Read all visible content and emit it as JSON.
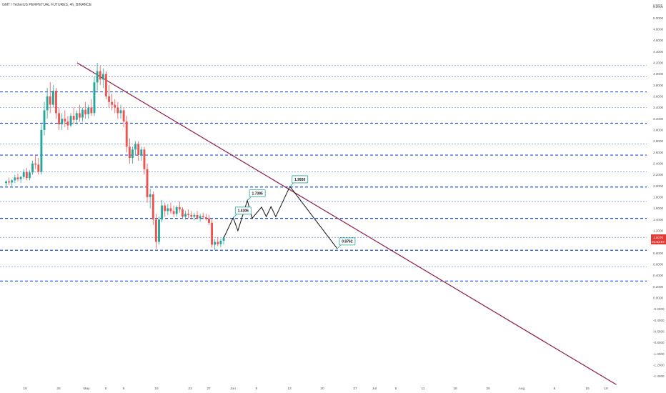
{
  "header": {
    "symbol_title": "GMT / TetherUS PERPETUAL FUTURES, 4h, BINANCE",
    "currency": "USDT"
  },
  "price_tag": {
    "price": "1.0070",
    "countdown": "01:53:57",
    "color": "#e53935"
  },
  "colors": {
    "up": "#26a69a",
    "down": "#ef5350",
    "trendline": "#8b1a4a",
    "level_solid": "#1f4fd6",
    "level_dotted": "#4a72e0",
    "projection": "#111111",
    "annotation_border": "#26a69a"
  },
  "chart_data": {
    "type": "candlestick",
    "y_axis": {
      "ticks": [
        "5.2000",
        "5.0000",
        "4.8000",
        "4.6000",
        "4.4000",
        "4.2000",
        "4.0000",
        "3.8000",
        "3.6000",
        "3.4000",
        "3.2000",
        "3.0000",
        "2.8000",
        "2.6000",
        "2.4000",
        "2.2000",
        "2.0000",
        "1.8000",
        "1.6000",
        "1.4000",
        "1.2000",
        "1.0000",
        "0.8000",
        "0.6000",
        "0.4000",
        "0.2000",
        "0.0000",
        "-0.2000",
        "-0.4000",
        "-0.6000",
        "-0.8000",
        "-1.0000",
        "-1.2000",
        "-1.4000"
      ],
      "range": [
        -1.5,
        5.4
      ]
    },
    "x_axis": {
      "ticks": [
        "18",
        "25",
        "May",
        "5",
        "9",
        "16",
        "23",
        "27",
        "Jun",
        "6",
        "13",
        "20",
        "27",
        "Jul",
        "5",
        "11",
        "18",
        "25",
        "Aug",
        "8",
        "15",
        "19"
      ]
    },
    "horizontal_levels": [
      {
        "price": 4.15,
        "style": "dotted"
      },
      {
        "price": 3.95,
        "style": "dotted"
      },
      {
        "price": 3.68,
        "style": "dashed"
      },
      {
        "price": 3.4,
        "style": "dotted"
      },
      {
        "price": 3.12,
        "style": "dashed"
      },
      {
        "price": 2.75,
        "style": "dotted"
      },
      {
        "price": 2.55,
        "style": "dashed"
      },
      {
        "price": 2.25,
        "style": "dotted"
      },
      {
        "price": 1.98,
        "style": "dashed"
      },
      {
        "price": 1.72,
        "style": "dotted"
      },
      {
        "price": 1.42,
        "style": "dashed"
      },
      {
        "price": 1.08,
        "style": "dotted"
      },
      {
        "price": 0.85,
        "style": "dashed"
      },
      {
        "price": 0.55,
        "style": "dotted"
      },
      {
        "price": 0.3,
        "style": "dashed"
      }
    ],
    "trendline": {
      "from": {
        "x": "Apr 29",
        "y": 4.2
      },
      "to": {
        "x": "Aug 21",
        "y": -1.55
      }
    },
    "projection_path": [
      {
        "x": "May 30",
        "y": 1.07
      },
      {
        "x": "Jun 1",
        "y": 1.43
      },
      {
        "x": "Jun 2",
        "y": 1.2
      },
      {
        "x": "Jun 4",
        "y": 1.74
      },
      {
        "x": "Jun 5",
        "y": 1.42
      },
      {
        "x": "Jun 7",
        "y": 1.62
      },
      {
        "x": "Jun 8",
        "y": 1.45
      },
      {
        "x": "Jun 9",
        "y": 1.63
      },
      {
        "x": "Jun 10",
        "y": 1.45
      },
      {
        "x": "Jun 13",
        "y": 1.99
      },
      {
        "x": "Jun 23",
        "y": 0.88
      }
    ],
    "annotations": [
      {
        "label": "1.4306",
        "x": "Jun 1",
        "y": 1.43
      },
      {
        "label": "1.7395",
        "x": "Jun 4",
        "y": 1.74
      },
      {
        "label": "1.9930",
        "x": "Jun 13",
        "y": 1.99
      },
      {
        "label": "0.8762",
        "x": "Jun 23",
        "y": 0.88
      }
    ],
    "candles": [
      [
        2.05,
        2.1,
        2.0,
        2.08
      ],
      [
        2.08,
        2.15,
        2.02,
        2.06
      ],
      [
        2.06,
        2.12,
        2.0,
        2.1
      ],
      [
        2.1,
        2.2,
        2.05,
        2.15
      ],
      [
        2.15,
        2.22,
        2.08,
        2.12
      ],
      [
        2.12,
        2.18,
        2.05,
        2.16
      ],
      [
        2.16,
        2.3,
        2.12,
        2.25
      ],
      [
        2.25,
        2.32,
        2.1,
        2.14
      ],
      [
        2.14,
        2.28,
        2.1,
        2.24
      ],
      [
        2.24,
        2.45,
        2.2,
        2.4
      ],
      [
        2.4,
        2.55,
        2.3,
        2.38
      ],
      [
        2.38,
        2.5,
        2.2,
        2.25
      ],
      [
        2.25,
        3.1,
        2.2,
        3.0
      ],
      [
        3.0,
        3.5,
        2.9,
        3.35
      ],
      [
        3.35,
        3.75,
        3.2,
        3.6
      ],
      [
        3.6,
        3.85,
        3.3,
        3.45
      ],
      [
        3.45,
        3.8,
        3.4,
        3.7
      ],
      [
        3.7,
        3.75,
        3.2,
        3.3
      ],
      [
        3.3,
        3.4,
        3.0,
        3.1
      ],
      [
        3.1,
        3.3,
        3.0,
        3.2
      ],
      [
        3.2,
        3.35,
        3.05,
        3.15
      ],
      [
        3.15,
        3.25,
        3.0,
        3.08
      ],
      [
        3.08,
        3.3,
        3.05,
        3.25
      ],
      [
        3.25,
        3.4,
        3.1,
        3.18
      ],
      [
        3.18,
        3.35,
        3.1,
        3.3
      ],
      [
        3.3,
        3.45,
        3.15,
        3.22
      ],
      [
        3.22,
        3.4,
        3.15,
        3.36
      ],
      [
        3.36,
        3.5,
        3.2,
        3.28
      ],
      [
        3.28,
        3.45,
        3.2,
        3.4
      ],
      [
        3.4,
        3.55,
        3.25,
        3.3
      ],
      [
        3.3,
        3.95,
        3.25,
        3.85
      ],
      [
        3.85,
        4.2,
        3.7,
        4.05
      ],
      [
        4.05,
        4.15,
        3.8,
        3.9
      ],
      [
        3.9,
        4.1,
        3.75,
        4.0
      ],
      [
        4.0,
        4.05,
        3.55,
        3.6
      ],
      [
        3.6,
        3.8,
        3.4,
        3.5
      ],
      [
        3.5,
        3.65,
        3.35,
        3.45
      ],
      [
        3.45,
        3.55,
        3.3,
        3.4
      ],
      [
        3.4,
        3.5,
        3.2,
        3.3
      ],
      [
        3.3,
        3.45,
        3.2,
        3.35
      ],
      [
        3.35,
        3.4,
        3.05,
        3.15
      ],
      [
        3.15,
        3.25,
        2.6,
        2.7
      ],
      [
        2.7,
        2.85,
        2.4,
        2.5
      ],
      [
        2.5,
        2.7,
        2.4,
        2.65
      ],
      [
        2.65,
        2.8,
        2.55,
        2.75
      ],
      [
        2.75,
        2.8,
        2.45,
        2.55
      ],
      [
        2.55,
        2.7,
        2.45,
        2.65
      ],
      [
        2.65,
        2.7,
        2.2,
        2.3
      ],
      [
        2.3,
        2.4,
        1.7,
        1.8
      ],
      [
        1.8,
        1.95,
        1.6,
        1.85
      ],
      [
        1.85,
        1.9,
        1.3,
        1.4
      ],
      [
        1.4,
        1.5,
        0.88,
        1.0
      ],
      [
        1.0,
        1.45,
        0.95,
        1.4
      ],
      [
        1.4,
        1.75,
        1.35,
        1.65
      ],
      [
        1.65,
        1.7,
        1.45,
        1.55
      ],
      [
        1.55,
        1.68,
        1.48,
        1.6
      ],
      [
        1.6,
        1.7,
        1.5,
        1.55
      ],
      [
        1.55,
        1.65,
        1.45,
        1.5
      ],
      [
        1.5,
        1.65,
        1.45,
        1.62
      ],
      [
        1.62,
        1.72,
        1.52,
        1.58
      ],
      [
        1.58,
        1.62,
        1.42,
        1.45
      ],
      [
        1.45,
        1.55,
        1.4,
        1.5
      ],
      [
        1.5,
        1.58,
        1.42,
        1.48
      ],
      [
        1.48,
        1.55,
        1.4,
        1.45
      ],
      [
        1.45,
        1.52,
        1.38,
        1.48
      ],
      [
        1.48,
        1.55,
        1.4,
        1.42
      ],
      [
        1.42,
        1.5,
        1.36,
        1.46
      ],
      [
        1.46,
        1.52,
        1.4,
        1.44
      ],
      [
        1.44,
        1.5,
        1.38,
        1.42
      ],
      [
        1.42,
        1.48,
        1.3,
        1.34
      ],
      [
        1.34,
        1.4,
        0.9,
        0.95
      ],
      [
        0.95,
        1.05,
        0.85,
        1.0
      ],
      [
        1.0,
        1.08,
        0.92,
        0.96
      ],
      [
        0.96,
        1.06,
        0.9,
        1.02
      ],
      [
        1.02,
        1.1,
        0.95,
        1.07
      ]
    ],
    "candle_x_range": [
      "Apr 14",
      "May 30"
    ]
  }
}
